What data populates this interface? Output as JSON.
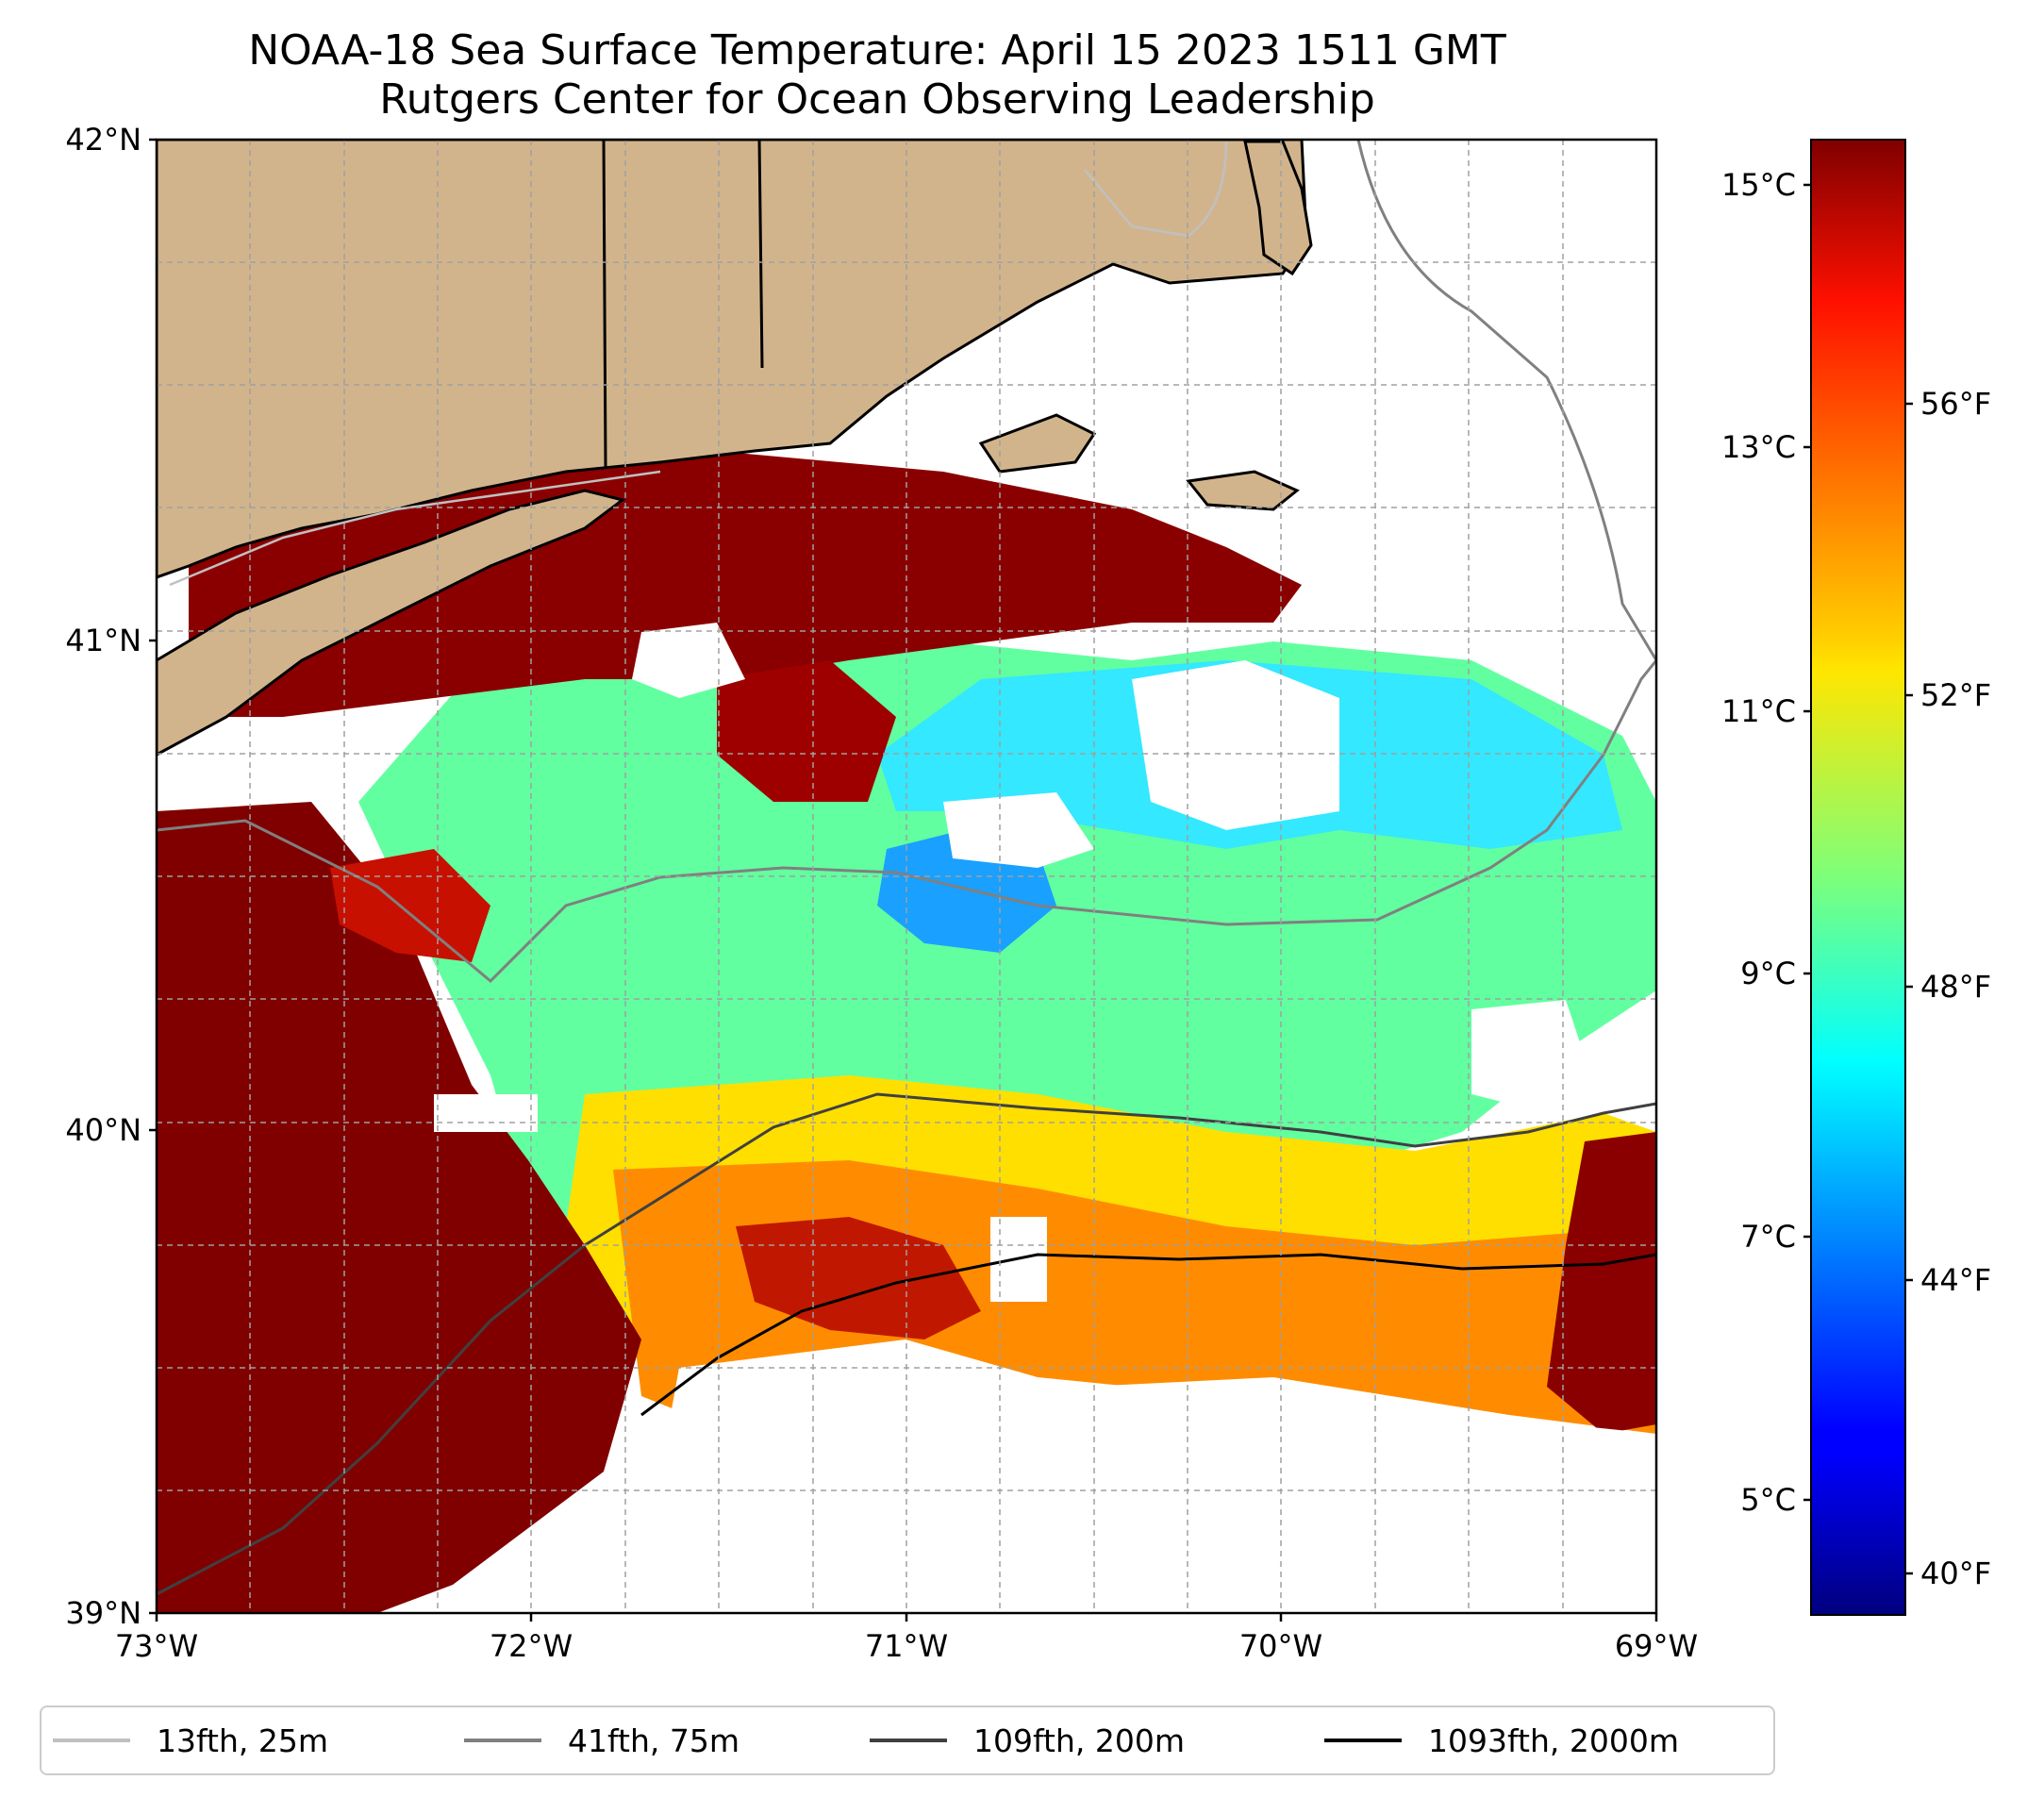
{
  "title": "NOAA-18 Sea Surface Temperature: April 15 2023 1511 GMT",
  "subtitle": "Rutgers Center for Ocean Observing Leadership",
  "map": {
    "lon_range": [
      -73,
      -69
    ],
    "lat_range": [
      39,
      42
    ],
    "x_ticks": [
      "73°W",
      "72°W",
      "71°W",
      "70°W",
      "69°W"
    ],
    "y_ticks": [
      "42°N",
      "41°N",
      "40°N",
      "39°N"
    ],
    "grid": "dashed",
    "land_color": "#d2b48c",
    "no_data_color": "#ffffff"
  },
  "colorbar": {
    "colormap": "jet",
    "celsius_ticks": [
      "15°C",
      "13°C",
      "11°C",
      "9°C",
      "7°C",
      "5°C"
    ],
    "fahrenheit_ticks": [
      "56°F",
      "52°F",
      "48°F",
      "44°F",
      "40°F"
    ]
  },
  "legend": [
    {
      "label": "13fth, 25m",
      "color": "#c0c0c0"
    },
    {
      "label": "41fth, 75m",
      "color": "#808080"
    },
    {
      "label": "109fth, 200m",
      "color": "#404040"
    },
    {
      "label": "1093fth, 2000m",
      "color": "#000000"
    }
  ]
}
